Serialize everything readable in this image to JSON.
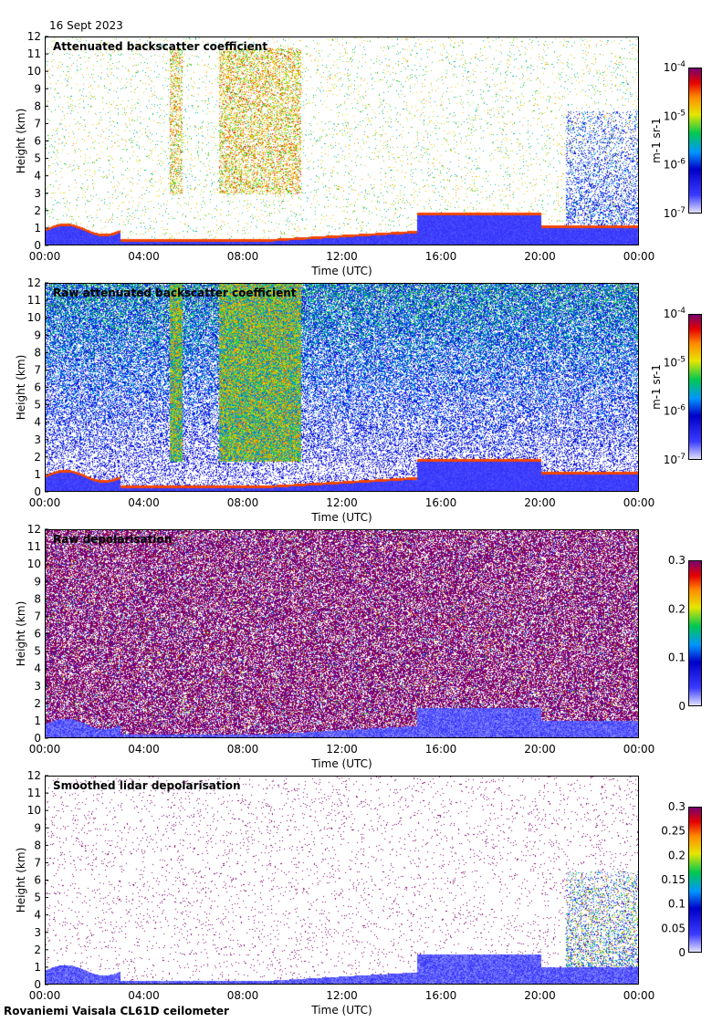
{
  "date_label": "16 Sept 2023",
  "footer": "Rovaniemi Vaisala CL61D ceilometer",
  "chart_data": [
    {
      "type": "heatmap",
      "title": "Attenuated backscatter coefficient",
      "xlabel": "Time (UTC)",
      "ylabel": "Height (km)",
      "x_ticks": [
        "00:00",
        "04:00",
        "08:00",
        "12:00",
        "16:00",
        "20:00",
        "00:00"
      ],
      "y_ticks": [
        "0",
        "1",
        "2",
        "3",
        "4",
        "5",
        "6",
        "7",
        "8",
        "9",
        "10",
        "11",
        "12"
      ],
      "ylim": [
        0,
        12
      ],
      "colorbar": {
        "scale": "log",
        "range": [
          1e-07,
          0.0001
        ],
        "unit": "m-1 sr-1",
        "labels": [
          {
            "base": "10",
            "exp": "-4"
          },
          {
            "base": "10",
            "exp": "-5"
          },
          {
            "base": "10",
            "exp": "-6"
          },
          {
            "base": "10",
            "exp": "-7"
          }
        ]
      }
    },
    {
      "type": "heatmap",
      "title": "Raw attenuated backscatter coefficient",
      "xlabel": "Time (UTC)",
      "ylabel": "Height (km)",
      "x_ticks": [
        "00:00",
        "04:00",
        "08:00",
        "12:00",
        "16:00",
        "20:00",
        "00:00"
      ],
      "y_ticks": [
        "0",
        "1",
        "2",
        "3",
        "4",
        "5",
        "6",
        "7",
        "8",
        "9",
        "10",
        "11",
        "12"
      ],
      "ylim": [
        0,
        12
      ],
      "colorbar": {
        "scale": "log",
        "range": [
          1e-07,
          0.0001
        ],
        "unit": "m-1 sr-1",
        "labels": [
          {
            "base": "10",
            "exp": "-4"
          },
          {
            "base": "10",
            "exp": "-5"
          },
          {
            "base": "10",
            "exp": "-6"
          },
          {
            "base": "10",
            "exp": "-7"
          }
        ]
      }
    },
    {
      "type": "heatmap",
      "title": "Raw depolarisation",
      "xlabel": "Time (UTC)",
      "ylabel": "Height (km)",
      "x_ticks": [
        "00:00",
        "04:00",
        "08:00",
        "12:00",
        "16:00",
        "20:00",
        "00:00"
      ],
      "y_ticks": [
        "0",
        "1",
        "2",
        "3",
        "4",
        "5",
        "6",
        "7",
        "8",
        "9",
        "10",
        "11",
        "12"
      ],
      "ylim": [
        0,
        12
      ],
      "colorbar": {
        "scale": "linear",
        "range": [
          0,
          0.3
        ],
        "unit": "",
        "labels": [
          "0.3",
          "0.2",
          "0.1",
          "0"
        ]
      }
    },
    {
      "type": "heatmap",
      "title": "Smoothed lidar depolarisation",
      "xlabel": "Time (UTC)",
      "ylabel": "Height (km)",
      "x_ticks": [
        "00:00",
        "04:00",
        "08:00",
        "12:00",
        "16:00",
        "20:00",
        "00:00"
      ],
      "y_ticks": [
        "0",
        "1",
        "2",
        "3",
        "4",
        "5",
        "6",
        "7",
        "8",
        "9",
        "10",
        "11",
        "12"
      ],
      "ylim": [
        0,
        12
      ],
      "colorbar": {
        "scale": "linear",
        "range": [
          0,
          0.3
        ],
        "unit": "",
        "labels": [
          "0.3",
          "0.25",
          "0.2",
          "0.15",
          "0.1",
          "0.05",
          "0"
        ]
      }
    }
  ]
}
